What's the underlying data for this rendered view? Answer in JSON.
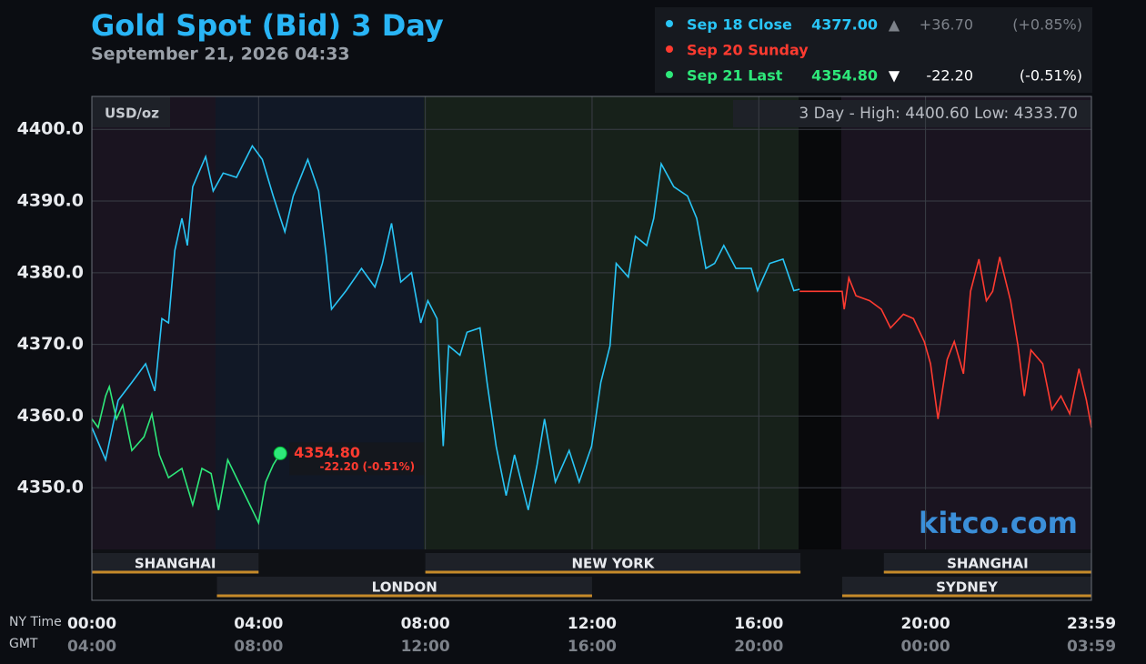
{
  "chart_data": {
    "type": "line",
    "title": "Gold Spot (Bid) 3 Day",
    "subtitle": "September 21, 2026 04:33",
    "unit_label": "USD/oz",
    "range_text": "3 Day - High: 4400.60  Low: 4333.70",
    "watermark": "kitco.com",
    "x_axis_label": "NY Time",
    "x2_axis_label": "GMT",
    "xlim": [
      0,
      23.98
    ],
    "ylim": [
      4341.4,
      4404.6
    ],
    "xticks": [
      {
        "value": 0,
        "label": "00:00"
      },
      {
        "value": 4,
        "label": "04:00"
      },
      {
        "value": 8,
        "label": "08:00"
      },
      {
        "value": 12,
        "label": "12:00"
      },
      {
        "value": 16,
        "label": "16:00"
      },
      {
        "value": 20,
        "label": "20:00"
      },
      {
        "value": 23.98,
        "label": "23:59"
      }
    ],
    "x2ticks": [
      {
        "value": 0,
        "label": "04:00"
      },
      {
        "value": 4,
        "label": "08:00"
      },
      {
        "value": 8,
        "label": "12:00"
      },
      {
        "value": 12,
        "label": "16:00"
      },
      {
        "value": 16,
        "label": "20:00"
      },
      {
        "value": 20,
        "label": "00:00"
      },
      {
        "value": 23.98,
        "label": "03:59"
      }
    ],
    "yticks": [
      {
        "value": 4350,
        "label": "4350.0"
      },
      {
        "value": 4360,
        "label": "4360.0"
      },
      {
        "value": 4370,
        "label": "4370.0"
      },
      {
        "value": 4380,
        "label": "4380.0"
      },
      {
        "value": 4390,
        "label": "4390.0"
      },
      {
        "value": 4400,
        "label": "4400.0"
      }
    ],
    "grid": true,
    "legend": [
      {
        "name": "Sep 18 Close",
        "value": "4377.00",
        "arrow": "▲",
        "change": "+36.70",
        "pct": "(+0.85%)"
      },
      {
        "name": "Sep 20 Sunday"
      },
      {
        "name": "Sep 21 Last",
        "value": "4354.80",
        "arrow": "▼",
        "change": "-22.20",
        "pct": "(-0.51%)"
      }
    ],
    "last_point": {
      "label": "4354.80",
      "change": "-22.20 (-0.51%)"
    },
    "sessions": [
      {
        "name": "SHANGHAI",
        "start": 0,
        "end": 4,
        "row": 1
      },
      {
        "name": "NEW YORK",
        "start": 8,
        "end": 17,
        "row": 1
      },
      {
        "name": "SHANGHAI",
        "start": 19,
        "end": 23.98,
        "row": 1
      },
      {
        "name": "LONDON",
        "start": 3,
        "end": 12,
        "row": 2
      },
      {
        "name": "SYDNEY",
        "start": 18,
        "end": 23.98,
        "row": 2
      }
    ],
    "series": [
      {
        "name": "Sep 18",
        "color": "#29c5f6",
        "x": [
          0,
          0.33,
          0.63,
          0.96,
          1.29,
          1.51,
          1.68,
          1.84,
          1.99,
          2.16,
          2.29,
          2.42,
          2.73,
          2.91,
          3.15,
          3.47,
          3.85,
          4.09,
          4.35,
          4.63,
          4.83,
          5.18,
          5.44,
          5.62,
          5.75,
          6.1,
          6.47,
          6.79,
          6.97,
          7.19,
          7.41,
          7.67,
          7.89,
          8.06,
          8.28,
          8.43,
          8.56,
          8.83,
          9,
          9.31,
          9.48,
          9.7,
          9.94,
          10.14,
          10.47,
          10.68,
          10.86,
          11.12,
          11.45,
          11.69,
          11.99,
          12.21,
          12.43,
          12.58,
          12.87,
          13.04,
          13.31,
          13.48,
          13.66,
          13.96,
          14.29,
          14.51,
          14.73,
          14.94,
          15.16,
          15.45,
          15.82,
          15.97,
          16.26,
          16.58,
          16.84,
          16.98
        ],
        "values": [
          4358.4,
          4353.9,
          4362.2,
          4364.7,
          4367.3,
          4363.5,
          4373.6,
          4373,
          4383.1,
          4387.6,
          4383.8,
          4392,
          4396.2,
          4391.4,
          4393.9,
          4393.3,
          4397.7,
          4395.8,
          4390.7,
          4385.7,
          4390.7,
          4395.8,
          4391.4,
          4382.5,
          4374.9,
          4377.5,
          4380.6,
          4378,
          4381.3,
          4386.9,
          4378.7,
          4380,
          4373,
          4376.1,
          4373.6,
          4355.8,
          4369.8,
          4368.5,
          4371.7,
          4372.3,
          4364.7,
          4355.8,
          4348.9,
          4354.6,
          4346.9,
          4353.2,
          4359.6,
          4350.8,
          4355.2,
          4350.8,
          4355.8,
          4364.7,
          4369.8,
          4381.3,
          4379.4,
          4385.1,
          4383.8,
          4387.6,
          4395.2,
          4392,
          4390.7,
          4387.6,
          4380.6,
          4381.3,
          4383.8,
          4380.6,
          4380.6,
          4377.5,
          4381.3,
          4381.9,
          4377.5,
          4377.7
        ]
      },
      {
        "name": "Sep 20",
        "color": "#ff3b30",
        "x": [
          16.98,
          18,
          18.05,
          18.16,
          18.33,
          18.66,
          18.94,
          19.16,
          19.47,
          19.71,
          19.97,
          20.12,
          20.3,
          20.52,
          20.69,
          20.91,
          21.08,
          21.28,
          21.46,
          21.61,
          21.78,
          22.04,
          22.22,
          22.37,
          22.53,
          22.81,
          23.03,
          23.25,
          23.46,
          23.68,
          23.86,
          23.98
        ],
        "values": [
          4377.4,
          4377.4,
          4374.9,
          4379.3,
          4376.8,
          4376.1,
          4374.9,
          4372.3,
          4374.2,
          4373.6,
          4370.4,
          4367.3,
          4359.6,
          4367.9,
          4370.4,
          4365.9,
          4377.4,
          4381.9,
          4376.1,
          4377.4,
          4382.2,
          4376.1,
          4369.8,
          4362.8,
          4369.2,
          4367.3,
          4360.9,
          4362.8,
          4360.3,
          4366.6,
          4362.2,
          4358.4
        ]
      },
      {
        "name": "Sep 21",
        "color": "#2ee87a",
        "x": [
          0,
          0.15,
          0.33,
          0.42,
          0.59,
          0.74,
          0.96,
          1.25,
          1.44,
          1.62,
          1.84,
          2.16,
          2.42,
          2.64,
          2.86,
          3.04,
          3.26,
          3.52,
          3.74,
          4,
          4.17,
          4.35,
          4.52
        ],
        "values": [
          4359.6,
          4358.4,
          4362.8,
          4364.1,
          4359.6,
          4361.5,
          4355.2,
          4357.1,
          4360.3,
          4354.6,
          4351.4,
          4352.7,
          4347.6,
          4352.7,
          4352,
          4346.9,
          4353.9,
          4350.8,
          4348.2,
          4345.1,
          4350.8,
          4353.2,
          4354.8
        ]
      }
    ]
  }
}
